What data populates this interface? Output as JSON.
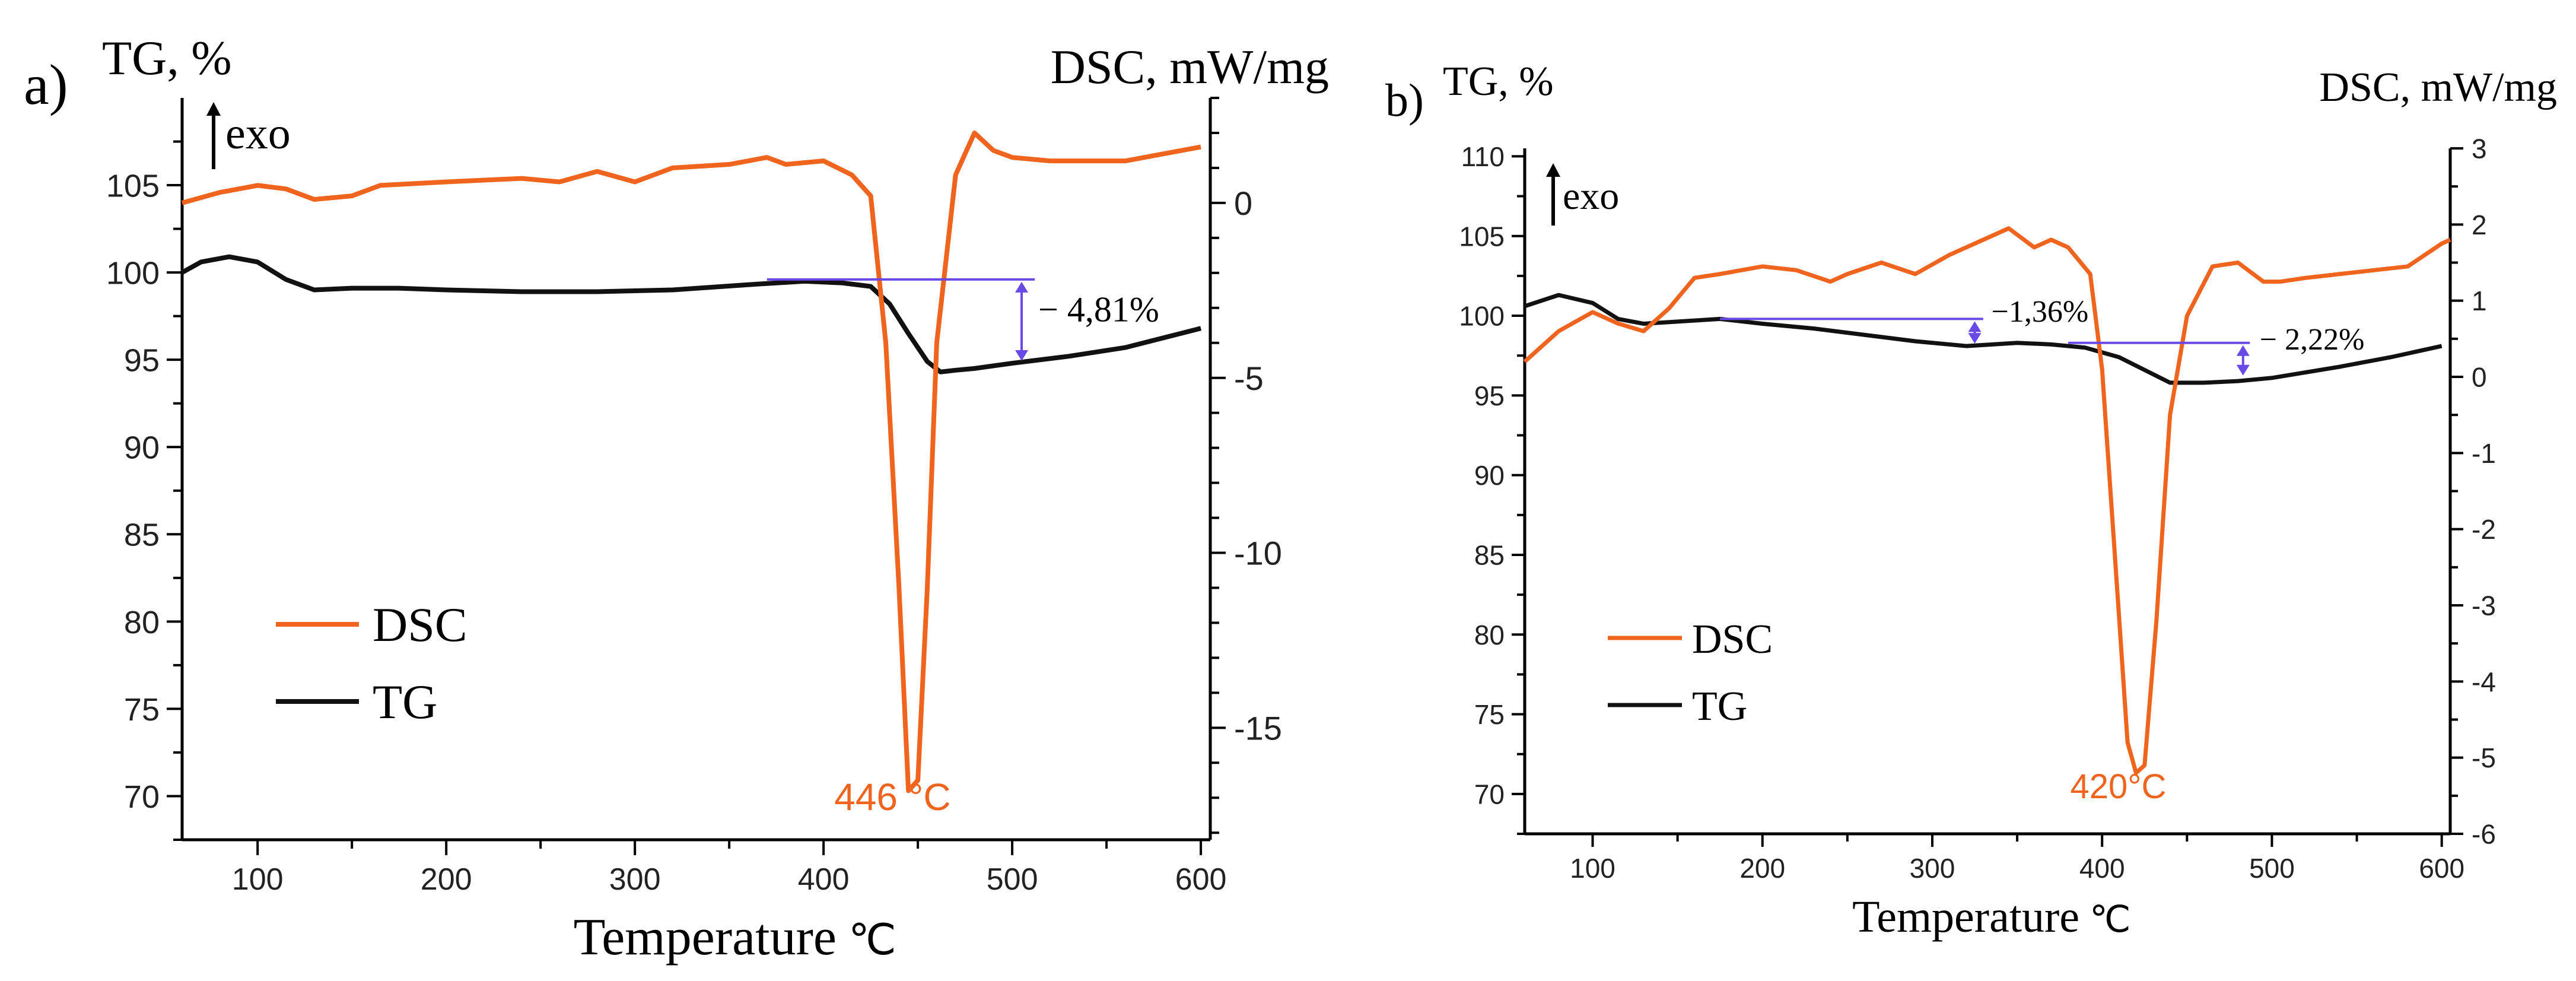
{
  "colors": {
    "dsc": "#f0641e",
    "tg": "#111111",
    "annotation": "#6a4ae6",
    "peak_label": "#f0641e"
  },
  "chart_data": [
    {
      "type": "line",
      "panel_label": "a)",
      "left_axis_title": "TG, %",
      "right_axis_title": "DSC, mW/mg",
      "exo_label": "exo",
      "xlabel": "Temperature",
      "xlabel_unit": "℃",
      "xlim": [
        60,
        605
      ],
      "xticks": [
        100,
        200,
        300,
        400,
        500,
        600
      ],
      "ylim_left": [
        67.5,
        110
      ],
      "yticks_left": [
        70,
        75,
        80,
        85,
        90,
        95,
        100,
        105
      ],
      "ylim_right": [
        -18.2,
        3
      ],
      "yticks_right": [
        0,
        -5,
        -10,
        -15
      ],
      "legend": [
        "DSC",
        "TG"
      ],
      "series": [
        {
          "name": "DSC",
          "axis": "right",
          "x": [
            60,
            80,
            100,
            115,
            130,
            150,
            165,
            200,
            240,
            260,
            280,
            300,
            320,
            350,
            370,
            380,
            400,
            415,
            425,
            433,
            440,
            445,
            450,
            455,
            460,
            470,
            480,
            490,
            500,
            520,
            540,
            560,
            580,
            600
          ],
          "values": [
            0,
            0.3,
            0.5,
            0.4,
            0.1,
            0.2,
            0.5,
            0.6,
            0.7,
            0.6,
            0.9,
            0.6,
            1.0,
            1.1,
            1.3,
            1.1,
            1.2,
            0.8,
            0.2,
            -4,
            -11,
            -16.8,
            -16.5,
            -11,
            -4,
            0.8,
            2.0,
            1.5,
            1.3,
            1.2,
            1.2,
            1.2,
            1.4,
            1.6
          ]
        },
        {
          "name": "TG",
          "axis": "left",
          "x": [
            60,
            70,
            85,
            100,
            115,
            130,
            150,
            175,
            200,
            240,
            280,
            320,
            360,
            390,
            410,
            425,
            435,
            445,
            455,
            462,
            470,
            480,
            500,
            530,
            560,
            600
          ],
          "values": [
            100.0,
            100.6,
            100.9,
            100.6,
            99.6,
            99.0,
            99.1,
            99.1,
            99.0,
            98.9,
            98.9,
            99.0,
            99.3,
            99.5,
            99.4,
            99.2,
            98.2,
            96.5,
            94.9,
            94.3,
            94.4,
            94.5,
            94.8,
            95.2,
            95.7,
            96.8
          ]
        }
      ],
      "annotations": [
        {
          "text": "− 4,81%",
          "x_start": 370,
          "x_end": 512,
          "x_arrow": 505,
          "y_top": 99.6,
          "y_bottom": 94.8
        }
      ],
      "peak_label": {
        "text": "446 °C",
        "x": 446
      }
    },
    {
      "type": "line",
      "panel_label": "b)",
      "left_axis_title": "TG, %",
      "right_axis_title": "DSC, mW/mg",
      "exo_label": "exo",
      "xlabel": "Temperature",
      "xlabel_unit": "℃",
      "xlim": [
        60,
        605
      ],
      "xticks": [
        100,
        200,
        300,
        400,
        500,
        600
      ],
      "ylim_left": [
        67.5,
        110.5
      ],
      "yticks_left": [
        70,
        75,
        80,
        85,
        90,
        95,
        100,
        105,
        110
      ],
      "ylim_right": [
        -6,
        3
      ],
      "yticks_right": [
        3,
        2,
        1,
        0,
        -1,
        -2,
        -3,
        -4,
        -5,
        -6
      ],
      "legend": [
        "DSC",
        "TG"
      ],
      "series": [
        {
          "name": "DSC",
          "axis": "right",
          "x": [
            60,
            80,
            100,
            115,
            130,
            145,
            160,
            175,
            200,
            220,
            240,
            250,
            270,
            290,
            310,
            330,
            345,
            360,
            370,
            380,
            393,
            400,
            408,
            415,
            420,
            425,
            432,
            440,
            450,
            465,
            480,
            495,
            505,
            520,
            540,
            560,
            580,
            600,
            605
          ],
          "values": [
            0.2,
            0.6,
            0.85,
            0.7,
            0.6,
            0.9,
            1.3,
            1.35,
            1.45,
            1.4,
            1.25,
            1.35,
            1.5,
            1.35,
            1.6,
            1.8,
            1.95,
            1.7,
            1.8,
            1.7,
            1.35,
            0.1,
            -2.5,
            -4.8,
            -5.2,
            -5.1,
            -3.2,
            -0.5,
            0.8,
            1.45,
            1.5,
            1.25,
            1.25,
            1.3,
            1.35,
            1.4,
            1.45,
            1.75,
            1.8
          ]
        },
        {
          "name": "TG",
          "axis": "left",
          "x": [
            60,
            80,
            100,
            115,
            130,
            175,
            200,
            230,
            260,
            290,
            320,
            350,
            370,
            390,
            410,
            425,
            440,
            460,
            480,
            500,
            540,
            570,
            600
          ],
          "values": [
            100.6,
            101.3,
            100.8,
            99.8,
            99.5,
            99.8,
            99.5,
            99.2,
            98.8,
            98.4,
            98.1,
            98.3,
            98.2,
            98.0,
            97.4,
            96.6,
            95.8,
            95.8,
            95.9,
            96.1,
            96.8,
            97.4,
            98.1
          ]
        }
      ],
      "annotations": [
        {
          "text": "−1,36%",
          "x_start": 175,
          "x_end": 330,
          "x_arrow": 325,
          "y_top": 99.8,
          "y_bottom": 98.1
        },
        {
          "text": "− 2,22%",
          "x_start": 380,
          "x_end": 487,
          "x_arrow": 483,
          "y_top": 98.3,
          "y_bottom": 96.1
        }
      ],
      "peak_label": {
        "text": "420°C",
        "x": 420
      }
    }
  ]
}
